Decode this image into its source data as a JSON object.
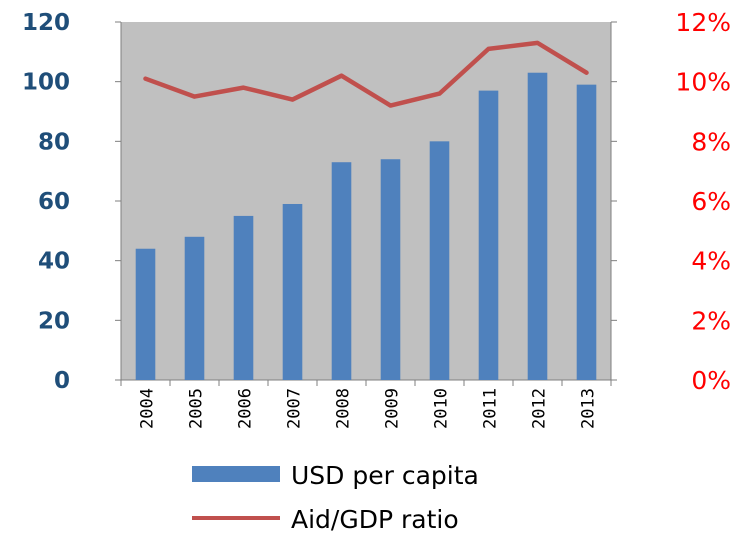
{
  "chart_data": {
    "type": "bar",
    "categories": [
      "2004",
      "2005",
      "2006",
      "2007",
      "2008",
      "2009",
      "2010",
      "2011",
      "2012",
      "2013"
    ],
    "series": [
      {
        "name": "USD per capita",
        "type": "bar",
        "axis": "left",
        "values": [
          44,
          48,
          55,
          59,
          73,
          74,
          80,
          97,
          103,
          99
        ]
      },
      {
        "name": "Aid/GDP ratio",
        "type": "line",
        "axis": "right",
        "values": [
          10.1,
          9.5,
          9.8,
          9.4,
          10.2,
          9.2,
          9.6,
          11.1,
          11.3,
          10.3
        ]
      }
    ],
    "y_left": {
      "ylim": [
        0,
        120
      ],
      "ticks": [
        "0",
        "20",
        "40",
        "60",
        "80",
        "100",
        "120"
      ]
    },
    "y_right": {
      "ylim": [
        0,
        12
      ],
      "ticks": [
        "0%",
        "2%",
        "4%",
        "6%",
        "8%",
        "10%",
        "12%"
      ]
    },
    "plot_background": "#c0c0c0",
    "legend_position": "bottom",
    "grid": false
  },
  "colors": {
    "bar": "#4f81bd",
    "line": "#c0504d",
    "left_axis_text": "#1f4e79",
    "right_axis_text": "#ff0000"
  }
}
